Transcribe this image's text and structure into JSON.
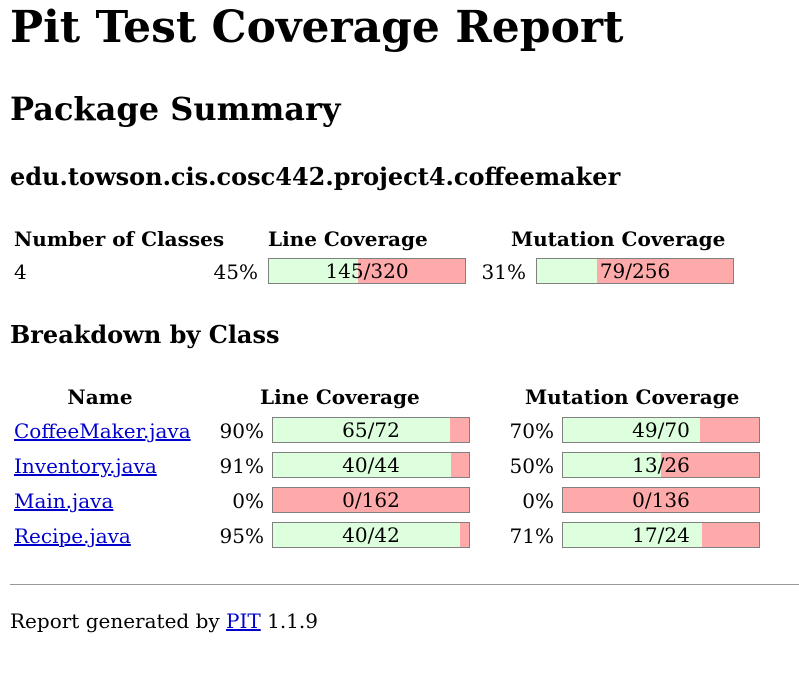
{
  "title": "Pit Test Coverage Report",
  "package_summary": {
    "heading": "Package Summary",
    "package_name": "edu.towson.cis.cosc442.project4.coffeemaker",
    "headers": {
      "classes": "Number of Classes",
      "line": "Line Coverage",
      "mutation": "Mutation Coverage"
    },
    "classes": "4",
    "line_pct": "45%",
    "line_label": "145/320",
    "line_covered": 145,
    "line_total": 320,
    "mutation_pct": "31%",
    "mutation_label": "79/256",
    "mutation_covered": 79,
    "mutation_total": 256
  },
  "breakdown": {
    "heading": "Breakdown by Class",
    "headers": {
      "name": "Name",
      "line": "Line Coverage",
      "mutation": "Mutation Coverage"
    },
    "rows": [
      {
        "name": "CoffeeMaker.java",
        "line_pct": "90%",
        "line_label": "65/72",
        "line_covered": 65,
        "line_total": 72,
        "mutation_pct": "70%",
        "mutation_label": "49/70",
        "mutation_covered": 49,
        "mutation_total": 70
      },
      {
        "name": "Inventory.java",
        "line_pct": "91%",
        "line_label": "40/44",
        "line_covered": 40,
        "line_total": 44,
        "mutation_pct": "50%",
        "mutation_label": "13/26",
        "mutation_covered": 13,
        "mutation_total": 26
      },
      {
        "name": "Main.java",
        "line_pct": "0%",
        "line_label": "0/162",
        "line_covered": 0,
        "line_total": 162,
        "mutation_pct": "0%",
        "mutation_label": "0/136",
        "mutation_covered": 0,
        "mutation_total": 136
      },
      {
        "name": "Recipe.java",
        "line_pct": "95%",
        "line_label": "40/42",
        "line_covered": 40,
        "line_total": 42,
        "mutation_pct": "71%",
        "mutation_label": "17/24",
        "mutation_covered": 17,
        "mutation_total": 24
      }
    ]
  },
  "footer": {
    "prefix": "Report generated by",
    "link": "PIT",
    "version": "1.1.9"
  },
  "colors": {
    "covered": "#ddffdd",
    "uncovered": "#ffaaaa",
    "link": "#0000cc"
  }
}
